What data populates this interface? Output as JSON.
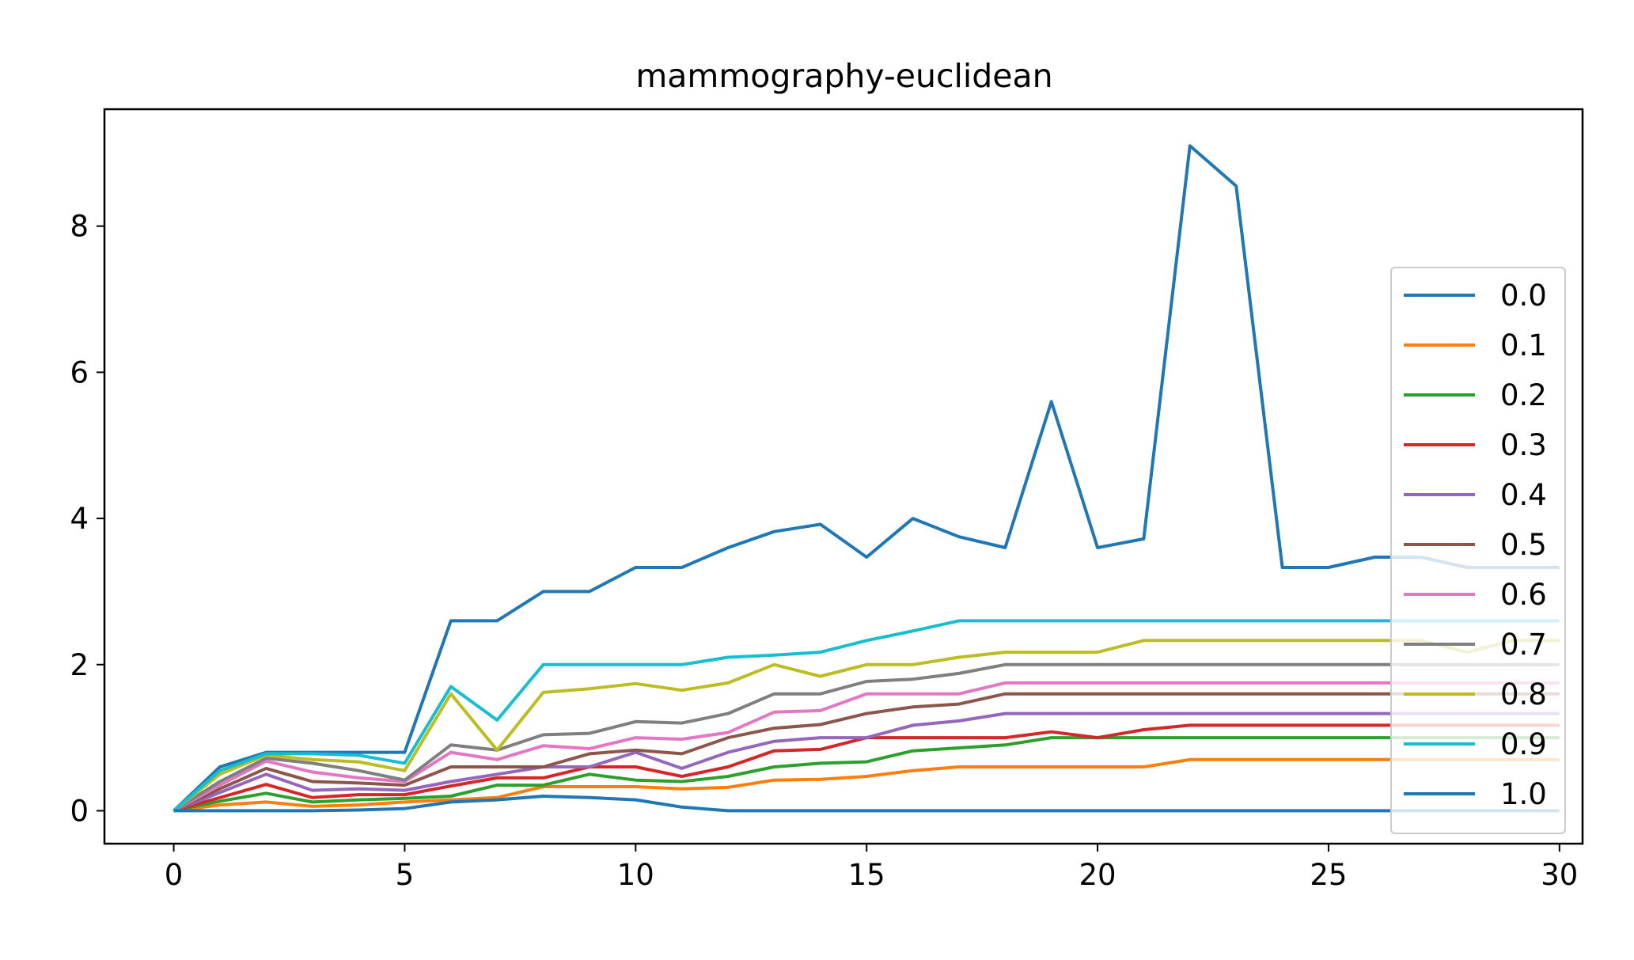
{
  "chart_data": {
    "type": "line",
    "title": "mammography-euclidean",
    "xlabel": "",
    "ylabel": "",
    "xlim": [
      -1.5,
      30.5
    ],
    "ylim": [
      -0.45,
      9.6
    ],
    "xticks": [
      0,
      5,
      10,
      15,
      20,
      25,
      30
    ],
    "yticks": [
      0,
      2,
      4,
      6,
      8
    ],
    "grid": false,
    "legend_position": "right",
    "x": [
      0,
      1,
      2,
      3,
      4,
      5,
      6,
      7,
      8,
      9,
      10,
      11,
      12,
      13,
      14,
      15,
      16,
      17,
      18,
      19,
      20,
      21,
      22,
      23,
      24,
      25,
      26,
      27,
      28,
      29,
      30
    ],
    "series": [
      {
        "name": "0.0",
        "color": "#1f77b4",
        "values": [
          0,
          0.6,
          0.8,
          0.8,
          0.8,
          0.8,
          2.6,
          2.6,
          3.0,
          3.0,
          3.33,
          3.33,
          3.6,
          3.82,
          3.92,
          3.47,
          4.0,
          3.75,
          3.6,
          5.6,
          3.6,
          3.72,
          9.1,
          8.55,
          3.33,
          3.33,
          3.47,
          3.47,
          3.33,
          3.33,
          3.33
        ]
      },
      {
        "name": "0.1",
        "color": "#ff7f0e",
        "values": [
          0,
          0.08,
          0.12,
          0.06,
          0.08,
          0.12,
          0.15,
          0.18,
          0.33,
          0.33,
          0.33,
          0.3,
          0.32,
          0.42,
          0.43,
          0.47,
          0.55,
          0.6,
          0.6,
          0.6,
          0.6,
          0.6,
          0.7,
          0.7,
          0.7,
          0.7,
          0.7,
          0.7,
          0.7,
          0.7,
          0.7
        ]
      },
      {
        "name": "0.2",
        "color": "#2ca02c",
        "values": [
          0,
          0.13,
          0.24,
          0.12,
          0.15,
          0.17,
          0.2,
          0.35,
          0.35,
          0.5,
          0.42,
          0.4,
          0.47,
          0.6,
          0.65,
          0.67,
          0.82,
          0.86,
          0.9,
          1.0,
          1.0,
          1.0,
          1.0,
          1.0,
          1.0,
          1.0,
          1.0,
          1.0,
          1.0,
          1.0,
          1.0
        ]
      },
      {
        "name": "0.3",
        "color": "#d62728",
        "values": [
          0,
          0.18,
          0.36,
          0.18,
          0.22,
          0.22,
          0.34,
          0.45,
          0.45,
          0.6,
          0.6,
          0.47,
          0.6,
          0.82,
          0.84,
          1.0,
          1.0,
          1.0,
          1.0,
          1.08,
          1.0,
          1.11,
          1.17,
          1.17,
          1.17,
          1.17,
          1.17,
          1.17,
          1.17,
          1.17,
          1.17
        ]
      },
      {
        "name": "0.4",
        "color": "#9467bd",
        "values": [
          0,
          0.25,
          0.5,
          0.28,
          0.3,
          0.28,
          0.4,
          0.5,
          0.6,
          0.6,
          0.8,
          0.58,
          0.8,
          0.95,
          1.0,
          1.0,
          1.17,
          1.23,
          1.33,
          1.33,
          1.33,
          1.33,
          1.33,
          1.33,
          1.33,
          1.33,
          1.33,
          1.33,
          1.33,
          1.33,
          1.33
        ]
      },
      {
        "name": "0.5",
        "color": "#8c564b",
        "values": [
          0,
          0.3,
          0.58,
          0.4,
          0.38,
          0.35,
          0.6,
          0.6,
          0.6,
          0.78,
          0.83,
          0.78,
          1.0,
          1.13,
          1.18,
          1.33,
          1.42,
          1.46,
          1.6,
          1.6,
          1.6,
          1.6,
          1.6,
          1.6,
          1.6,
          1.6,
          1.6,
          1.6,
          1.6,
          1.6,
          1.6
        ]
      },
      {
        "name": "0.6",
        "color": "#e377c2",
        "values": [
          0,
          0.35,
          0.68,
          0.53,
          0.45,
          0.4,
          0.8,
          0.7,
          0.89,
          0.85,
          1.0,
          0.98,
          1.07,
          1.35,
          1.37,
          1.6,
          1.6,
          1.6,
          1.75,
          1.75,
          1.75,
          1.75,
          1.75,
          1.75,
          1.75,
          1.75,
          1.75,
          1.75,
          1.75,
          1.75,
          1.75
        ]
      },
      {
        "name": "0.7",
        "color": "#7f7f7f",
        "values": [
          0,
          0.4,
          0.72,
          0.65,
          0.55,
          0.42,
          0.9,
          0.83,
          1.04,
          1.06,
          1.22,
          1.2,
          1.33,
          1.6,
          1.6,
          1.77,
          1.8,
          1.88,
          2.0,
          2.0,
          2.0,
          2.0,
          2.0,
          2.0,
          2.0,
          2.0,
          2.0,
          2.0,
          2.0,
          2.0,
          2.0
        ]
      },
      {
        "name": "0.8",
        "color": "#bcbd22",
        "values": [
          0,
          0.5,
          0.76,
          0.7,
          0.67,
          0.55,
          1.6,
          0.83,
          1.62,
          1.67,
          1.74,
          1.65,
          1.75,
          2.0,
          1.84,
          2.0,
          2.0,
          2.1,
          2.17,
          2.17,
          2.17,
          2.33,
          2.33,
          2.33,
          2.33,
          2.33,
          2.33,
          2.33,
          2.17,
          2.33,
          2.33
        ]
      },
      {
        "name": "0.9",
        "color": "#17becf",
        "values": [
          0,
          0.55,
          0.78,
          0.78,
          0.76,
          0.65,
          1.7,
          1.24,
          2.0,
          2.0,
          2.0,
          2.0,
          2.1,
          2.13,
          2.17,
          2.33,
          2.46,
          2.6,
          2.6,
          2.6,
          2.6,
          2.6,
          2.6,
          2.6,
          2.6,
          2.6,
          2.6,
          2.6,
          2.6,
          2.6,
          2.6
        ]
      },
      {
        "name": "1.0",
        "color": "#1f77b4",
        "values": [
          0,
          0,
          0,
          0,
          0.01,
          0.03,
          0.12,
          0.15,
          0.2,
          0.18,
          0.15,
          0.05,
          0,
          0,
          0,
          0,
          0,
          0,
          0,
          0,
          0,
          0,
          0,
          0,
          0,
          0,
          0,
          0,
          0,
          0,
          0
        ]
      }
    ]
  }
}
